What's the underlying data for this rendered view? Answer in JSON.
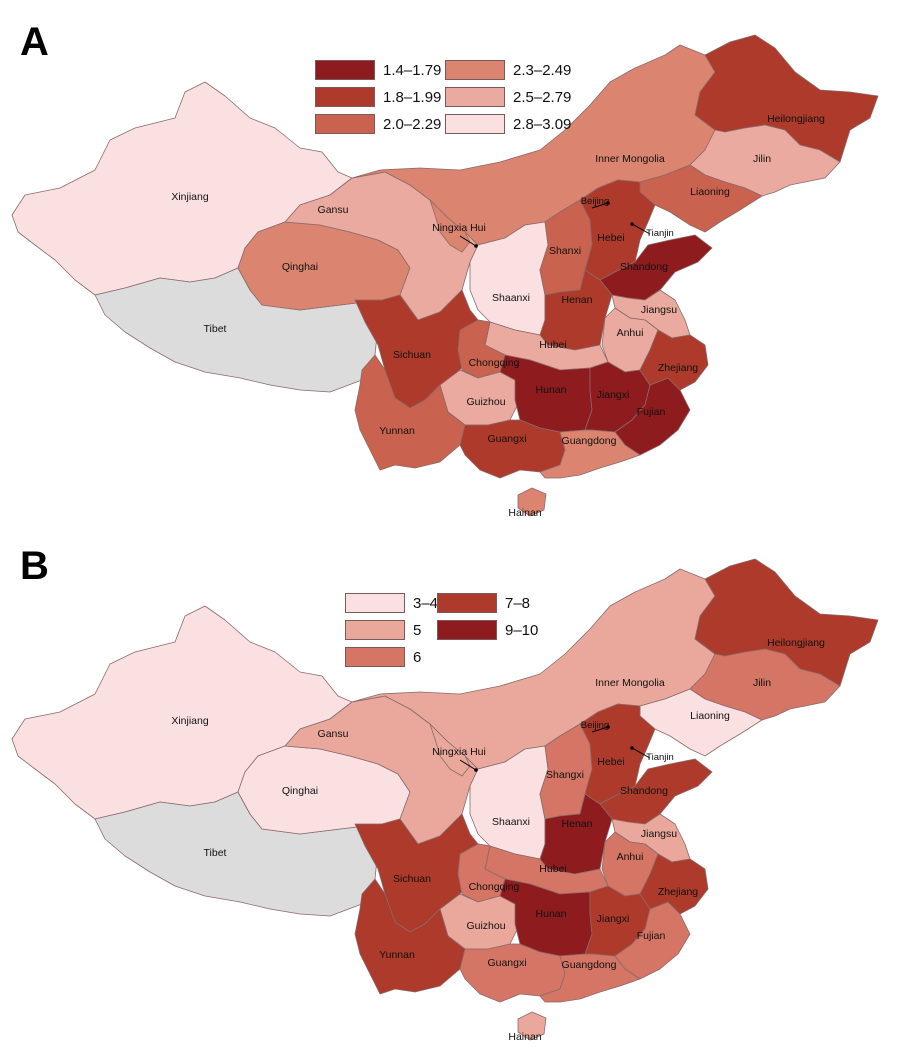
{
  "panels": [
    {
      "id": "A",
      "legend": [
        {
          "label": "1.4–1.79",
          "color": "#8e1b1e"
        },
        {
          "label": "1.8–1.99",
          "color": "#ad3a2a"
        },
        {
          "label": "2.0–2.29",
          "color": "#c9624f"
        },
        {
          "label": "2.3–2.49",
          "color": "#db8470"
        },
        {
          "label": "2.5–2.79",
          "color": "#eaaa9f"
        },
        {
          "label": "2.8–3.09",
          "color": "#fbe0e2"
        }
      ],
      "no_data_color": "#dcdcdc",
      "regions": {
        "Xinjiang": "2.8–3.09",
        "Tibet": "no data",
        "Qinghai": "2.3–2.49",
        "Gansu": "2.5–2.79",
        "Inner Mongolia": "2.3–2.49",
        "Heilongjiang": "1.8–1.99",
        "Jilin": "2.5–2.79",
        "Liaoning": "2.0–2.29",
        "Ningxia Hui": "2.3–2.49",
        "Shaanxi": "2.8–3.09",
        "Shanxi": "2.0–2.29",
        "Beijing": "1.8–1.99",
        "Tianjin": "2.8–3.09",
        "Hebei": "1.8–1.99",
        "Shandong": "1.4–1.79",
        "Henan": "1.8–1.99",
        "Jiangsu": "2.5–2.79",
        "Anhui": "2.5–2.79",
        "Hubei": "2.5–2.79",
        "Sichuan": "1.8–1.99",
        "Chongqing": "2.0–2.29",
        "Guizhou": "2.5–2.79",
        "Yunnan": "2.0–2.29",
        "Hunan": "1.4–1.79",
        "Jiangxi": "1.4–1.79",
        "Fujian": "1.4–1.79",
        "Zhejiang": "1.8–1.99",
        "Guangxi": "1.8–1.99",
        "Guangdong": "2.3–2.49",
        "Hainan": "2.3–2.49"
      },
      "labels": {
        "Xinjiang": "Xinjiang",
        "Tibet": "Tibet",
        "Qinghai": "Qinghai",
        "Gansu": "Gansu",
        "Inner Mongolia": "Inner Mongolia",
        "Heilongjiang": "Heilongjiang",
        "Jilin": "Jilin",
        "Liaoning": "Liaoning",
        "Ningxia Hui": "Ningxia Hui",
        "Shaanxi": "Shaanxi",
        "Shanxi": "Shanxi",
        "Beijing": "Beijing",
        "Tianjin": "Tianjin",
        "Hebei": "Hebei",
        "Shandong": "Shandong",
        "Henan": "Henan",
        "Jiangsu": "Jiangsu",
        "Anhui": "Anhui",
        "Hubei": "Hubei",
        "Sichuan": "Sichuan",
        "Chongqing": "Chongqing",
        "Guizhou": "Guizhou",
        "Yunnan": "Yunnan",
        "Hunan": "Hunan",
        "Jiangxi": "Jiangxi",
        "Fujian": "Fujian",
        "Zhejiang": "Zhejiang",
        "Guangxi": "Guangxi",
        "Guangdong": "Guangdong",
        "Hainan": "Hainan"
      }
    },
    {
      "id": "B",
      "legend": [
        {
          "label": "3–4",
          "color": "#fbe0e2"
        },
        {
          "label": "5",
          "color": "#eaa89c"
        },
        {
          "label": "6",
          "color": "#d47565"
        },
        {
          "label": "7–8",
          "color": "#ad3a2a"
        },
        {
          "label": "9–10",
          "color": "#8e1b1e"
        }
      ],
      "no_data_color": "#dcdcdc",
      "regions": {
        "Xinjiang": "3–4",
        "Tibet": "no data",
        "Qinghai": "3–4",
        "Gansu": "5",
        "Inner Mongolia": "5",
        "Heilongjiang": "7–8",
        "Jilin": "6",
        "Liaoning": "3–4",
        "Ningxia Hui": "5",
        "Shaanxi": "3–4",
        "Shanxi": "6",
        "Beijing": "7–8",
        "Tianjin": "3–4",
        "Hebei": "7–8",
        "Shandong": "7–8",
        "Henan": "9–10",
        "Jiangsu": "5",
        "Anhui": "6",
        "Hubei": "6",
        "Sichuan": "7–8",
        "Chongqing": "6",
        "Guizhou": "5",
        "Yunnan": "7–8",
        "Hunan": "9–10",
        "Jiangxi": "7–8",
        "Fujian": "6",
        "Zhejiang": "7–8",
        "Guangxi": "6",
        "Guangdong": "6",
        "Hainan": "5"
      },
      "labels": {
        "Xinjiang": "Xinjiang",
        "Tibet": "Tibet",
        "Qinghai": "Qinghai",
        "Gansu": "Gansu",
        "Inner Mongolia": "Inner Mongolia",
        "Heilongjiang": "Heilongjiang",
        "Jilin": "Jilin",
        "Liaoning": "Liaoning",
        "Ningxia Hui": "Ningxia Hui",
        "Shaanxi": "Shaanxi",
        "Shanxi": "Shangxi",
        "Beijing": "Beijing",
        "Tianjin": "Tianjin",
        "Hebei": "Hebei",
        "Shandong": "Shandong",
        "Henan": "Henan",
        "Jiangsu": "Jiangsu",
        "Anhui": "Anhui",
        "Hubei": "Hubei",
        "Sichuan": "Sichuan",
        "Chongqing": "Chongqing",
        "Guizhou": "Guizhou",
        "Yunnan": "Yunnan",
        "Hunan": "Hunan",
        "Jiangxi": "Jiangxi",
        "Fujian": "Fujian",
        "Zhejiang": "Zhejiang",
        "Guangxi": "Guangxi",
        "Guangdong": "Guangdong",
        "Hainan": "Hainan"
      }
    }
  ]
}
